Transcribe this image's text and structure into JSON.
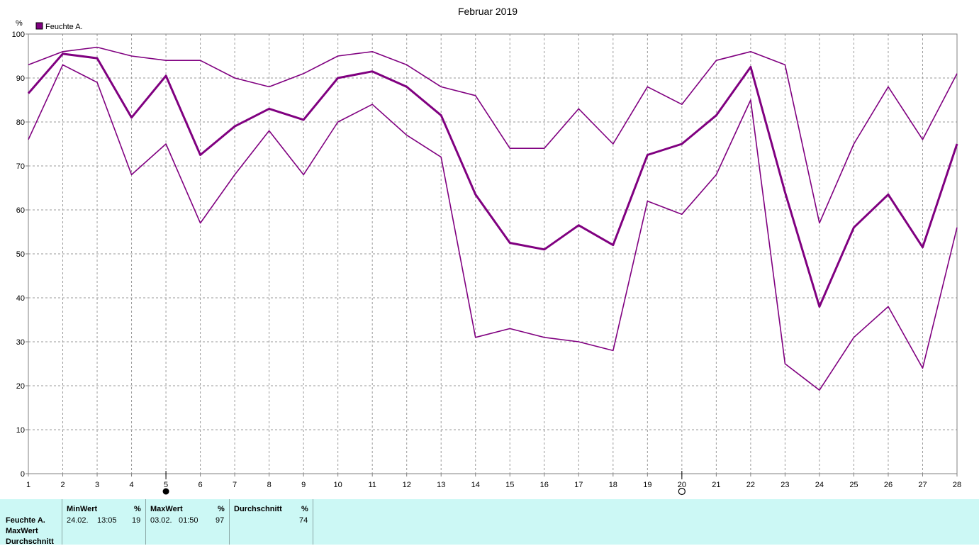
{
  "chart_data": {
    "type": "line",
    "title": "Februar 2019",
    "unit_label": "%",
    "legend": [
      {
        "name": "Feuchte A.",
        "color": "#800080"
      }
    ],
    "x": [
      1,
      2,
      3,
      4,
      5,
      6,
      7,
      8,
      9,
      10,
      11,
      12,
      13,
      14,
      15,
      16,
      17,
      18,
      19,
      20,
      21,
      22,
      23,
      24,
      25,
      26,
      27,
      28
    ],
    "xlim": [
      1,
      28
    ],
    "ylim": [
      0,
      100
    ],
    "yticks": [
      0,
      10,
      20,
      30,
      40,
      50,
      60,
      70,
      80,
      90,
      100
    ],
    "grid": true,
    "series": [
      {
        "role": "max",
        "values": [
          93,
          96,
          97,
          95,
          94,
          94,
          90,
          88,
          91,
          95,
          96,
          93,
          88,
          86,
          74,
          74,
          83,
          75,
          88,
          84,
          94,
          96,
          93,
          57,
          75,
          88,
          76,
          91
        ]
      },
      {
        "role": "avg",
        "values": [
          86.5,
          95.5,
          94.5,
          81,
          90.5,
          72.5,
          79,
          83,
          80.5,
          90,
          91.5,
          88,
          81.5,
          63.5,
          52.5,
          51,
          56.5,
          52,
          72.5,
          75,
          81.5,
          92.5,
          64,
          38,
          56,
          63.5,
          51.5,
          75
        ]
      },
      {
        "role": "min",
        "values": [
          76,
          93,
          89,
          68,
          75,
          57,
          68,
          78,
          68,
          80,
          84,
          77,
          72,
          31,
          33,
          31,
          30,
          28,
          62,
          59,
          68,
          85,
          25,
          19,
          31,
          38,
          24,
          56
        ]
      }
    ],
    "markers": [
      {
        "x": 5,
        "symbol": "filled-circle"
      },
      {
        "x": 20,
        "symbol": "open-circle"
      }
    ],
    "color": "#800080"
  },
  "stats": {
    "row_labels": [
      "Feuchte A.",
      "MaxWert",
      "Durchschnitt"
    ],
    "min": {
      "header": "MinWert",
      "unit": "%",
      "date": "24.02.",
      "time": "13:05",
      "value": "19"
    },
    "max": {
      "header": "MaxWert",
      "unit": "%",
      "date": "03.02.",
      "time": "01:50",
      "value": "97"
    },
    "avg": {
      "header": "Durchschnitt",
      "unit": "%",
      "value": "74"
    }
  }
}
